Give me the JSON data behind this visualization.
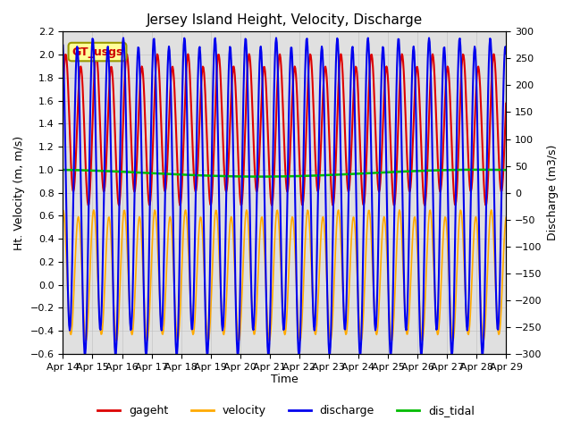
{
  "title": "Jersey Island Height, Velocity, Discharge",
  "xlabel": "Time",
  "ylabel_left": "Ht. Velocity (m, m/s)",
  "ylabel_right": "Discharge (m3/s)",
  "ylim_left": [
    -0.6,
    2.2
  ],
  "ylim_right": [
    -300,
    300
  ],
  "xtick_labels": [
    "Apr 14",
    "Apr 15",
    "Apr 16",
    "Apr 17",
    "Apr 18",
    "Apr 19",
    "Apr 20",
    "Apr 21",
    "Apr 22",
    "Apr 23",
    "Apr 24",
    "Apr 25",
    "Apr 26",
    "Apr 27",
    "Apr 28",
    "Apr 29"
  ],
  "series_colors": {
    "gageht": "#dd0000",
    "velocity": "#ffaa00",
    "discharge": "#0000ee",
    "dis_tidal": "#00bb00"
  },
  "legend_box_label": "GT_usgs",
  "legend_box_facecolor": "#ffff99",
  "legend_box_edgecolor": "#999900",
  "legend_box_textcolor": "#cc0000",
  "bg_color": "#e0e0e0",
  "fig_bg": "#ffffff",
  "linewidth_gageht": 1.5,
  "linewidth_velocity": 1.2,
  "linewidth_discharge": 1.5,
  "linewidth_tidal": 1.8,
  "yticks_left": [
    -0.6,
    -0.4,
    -0.2,
    0.0,
    0.2,
    0.4,
    0.6,
    0.8,
    1.0,
    1.2,
    1.4,
    1.6,
    1.8,
    2.0,
    2.2
  ],
  "yticks_right": [
    -300,
    -250,
    -200,
    -150,
    -100,
    -50,
    0,
    50,
    100,
    150,
    200,
    250,
    300
  ]
}
